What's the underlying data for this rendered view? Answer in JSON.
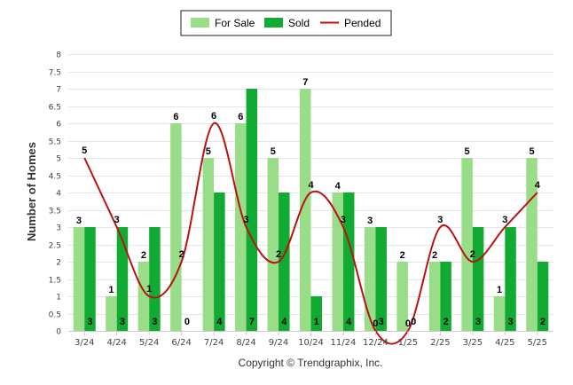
{
  "chart_data": {
    "type": "bar",
    "categories": [
      "3/24",
      "4/24",
      "5/24",
      "6/24",
      "7/24",
      "8/24",
      "9/24",
      "10/24",
      "11/24",
      "12/24",
      "1/25",
      "2/25",
      "3/25",
      "4/25",
      "5/25"
    ],
    "series": [
      {
        "name": "For Sale",
        "type": "bar",
        "color": "#99dd88",
        "values": [
          3,
          1,
          2,
          6,
          5,
          6,
          5,
          7,
          4,
          3,
          2,
          2,
          5,
          1,
          5
        ]
      },
      {
        "name": "Sold",
        "type": "bar",
        "color": "#11aa33",
        "values": [
          3,
          3,
          3,
          0,
          4,
          7,
          4,
          1,
          4,
          3,
          0,
          2,
          3,
          3,
          2
        ]
      },
      {
        "name": "Pended",
        "type": "line",
        "color": "#bb1111",
        "values": [
          5,
          3,
          1,
          2,
          6,
          3,
          2,
          4,
          3,
          0,
          0,
          3,
          2,
          3,
          4
        ]
      }
    ],
    "ylabel": "Number of Homes",
    "xlabel": "",
    "ylim": [
      0,
      8
    ],
    "yticks": [
      "0",
      "0.5",
      "1",
      "1.5",
      "2",
      "2.5",
      "3",
      "3.5",
      "4",
      "4.5",
      "5",
      "5.5",
      "6",
      "6.5",
      "7",
      "7.5",
      "8"
    ],
    "legend_position": "top-center",
    "grid": true
  },
  "credit": "Copyright © Trendgraphix, Inc."
}
